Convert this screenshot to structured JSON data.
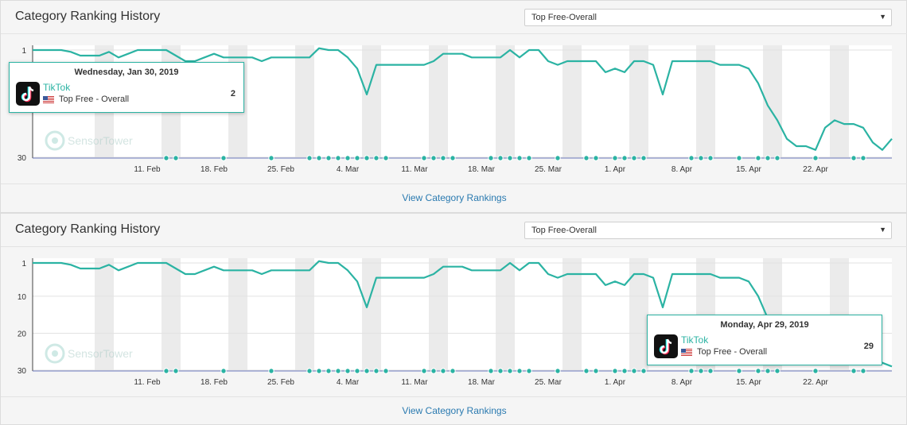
{
  "colors": {
    "line": "#2bb3a3",
    "band": "#ebebeb",
    "axis": "#6d7bbf"
  },
  "panels": [
    {
      "title": "Category Ranking History",
      "select_value": "Top Free-Overall",
      "footer_link": "View Category Rankings",
      "tooltip": {
        "date": "Wednesday, Jan 30, 2019",
        "app": "TikTok",
        "category": "Top Free - Overall",
        "rank": "2"
      }
    },
    {
      "title": "Category Ranking History",
      "select_value": "Top Free-Overall",
      "footer_link": "View Category Rankings",
      "tooltip": {
        "date": "Monday, Apr 29, 2019",
        "app": "TikTok",
        "category": "Top Free - Overall",
        "rank": "29"
      }
    }
  ],
  "watermark": "SensorTower",
  "chart_data": [
    {
      "type": "line",
      "x_ticks": [
        "11. Feb",
        "18. Feb",
        "25. Feb",
        "4. Mar",
        "11. Mar",
        "18. Mar",
        "25. Mar",
        "1. Apr",
        "8. Apr",
        "15. Apr",
        "22. Apr"
      ],
      "y_ticks": [
        "1",
        "30"
      ],
      "y_reversed": true,
      "ylim": [
        1,
        30
      ],
      "series": [
        {
          "values": [
            1,
            1,
            1,
            1,
            1.5,
            2.5,
            2.5,
            2.5,
            1.5,
            3,
            2,
            1,
            1,
            1,
            1,
            2.5,
            4,
            4,
            3,
            2,
            3,
            3,
            3,
            3,
            4,
            3,
            3,
            3,
            3,
            3,
            0.5,
            1,
            1,
            3,
            6,
            13,
            5,
            5,
            5,
            5,
            5,
            5,
            4,
            2,
            2,
            2,
            3,
            3,
            3,
            3,
            1,
            3,
            1,
            1,
            4,
            5,
            4,
            4,
            4,
            4,
            7,
            6,
            7,
            4,
            4,
            5,
            13,
            4,
            4,
            4,
            4,
            4,
            5,
            5,
            5,
            6,
            10,
            16,
            20,
            25,
            27,
            27,
            28,
            22,
            20,
            21,
            21,
            22,
            26,
            28,
            25
          ]
        }
      ],
      "markers": [
        14,
        15,
        20,
        25,
        29,
        30,
        31,
        32,
        33,
        34,
        35,
        36,
        37,
        41,
        42,
        43,
        44,
        48,
        49,
        50,
        51,
        52,
        55,
        58,
        59,
        61,
        62,
        63,
        64,
        69,
        70,
        71,
        74,
        76,
        77,
        78,
        82,
        86,
        87
      ]
    },
    {
      "type": "line",
      "x_ticks": [
        "11. Feb",
        "18. Feb",
        "25. Feb",
        "4. Mar",
        "11. Mar",
        "18. Mar",
        "25. Mar",
        "1. Apr",
        "8. Apr",
        "15. Apr",
        "22. Apr"
      ],
      "y_ticks": [
        "1",
        "10",
        "20",
        "30"
      ],
      "y_reversed": true,
      "ylim": [
        1,
        30
      ],
      "series": [
        {
          "values": [
            1,
            1,
            1,
            1,
            1.5,
            2.5,
            2.5,
            2.5,
            1.5,
            3,
            2,
            1,
            1,
            1,
            1,
            2.5,
            4,
            4,
            3,
            2,
            3,
            3,
            3,
            3,
            4,
            3,
            3,
            3,
            3,
            3,
            0.5,
            1,
            1,
            3,
            6,
            13,
            5,
            5,
            5,
            5,
            5,
            5,
            4,
            2,
            2,
            2,
            3,
            3,
            3,
            3,
            1,
            3,
            1,
            1,
            4,
            5,
            4,
            4,
            4,
            4,
            7,
            6,
            7,
            4,
            4,
            5,
            13,
            4,
            4,
            4,
            4,
            4,
            5,
            5,
            5,
            6,
            10,
            16,
            20,
            25,
            27,
            27,
            28,
            22,
            20,
            21,
            21,
            22,
            26,
            28,
            29
          ]
        }
      ],
      "markers": [
        14,
        15,
        20,
        25,
        29,
        30,
        31,
        32,
        33,
        34,
        35,
        36,
        37,
        41,
        42,
        43,
        44,
        48,
        49,
        50,
        51,
        52,
        55,
        58,
        59,
        61,
        62,
        63,
        64,
        69,
        70,
        71,
        74,
        76,
        77,
        78,
        82,
        86,
        87
      ]
    }
  ]
}
